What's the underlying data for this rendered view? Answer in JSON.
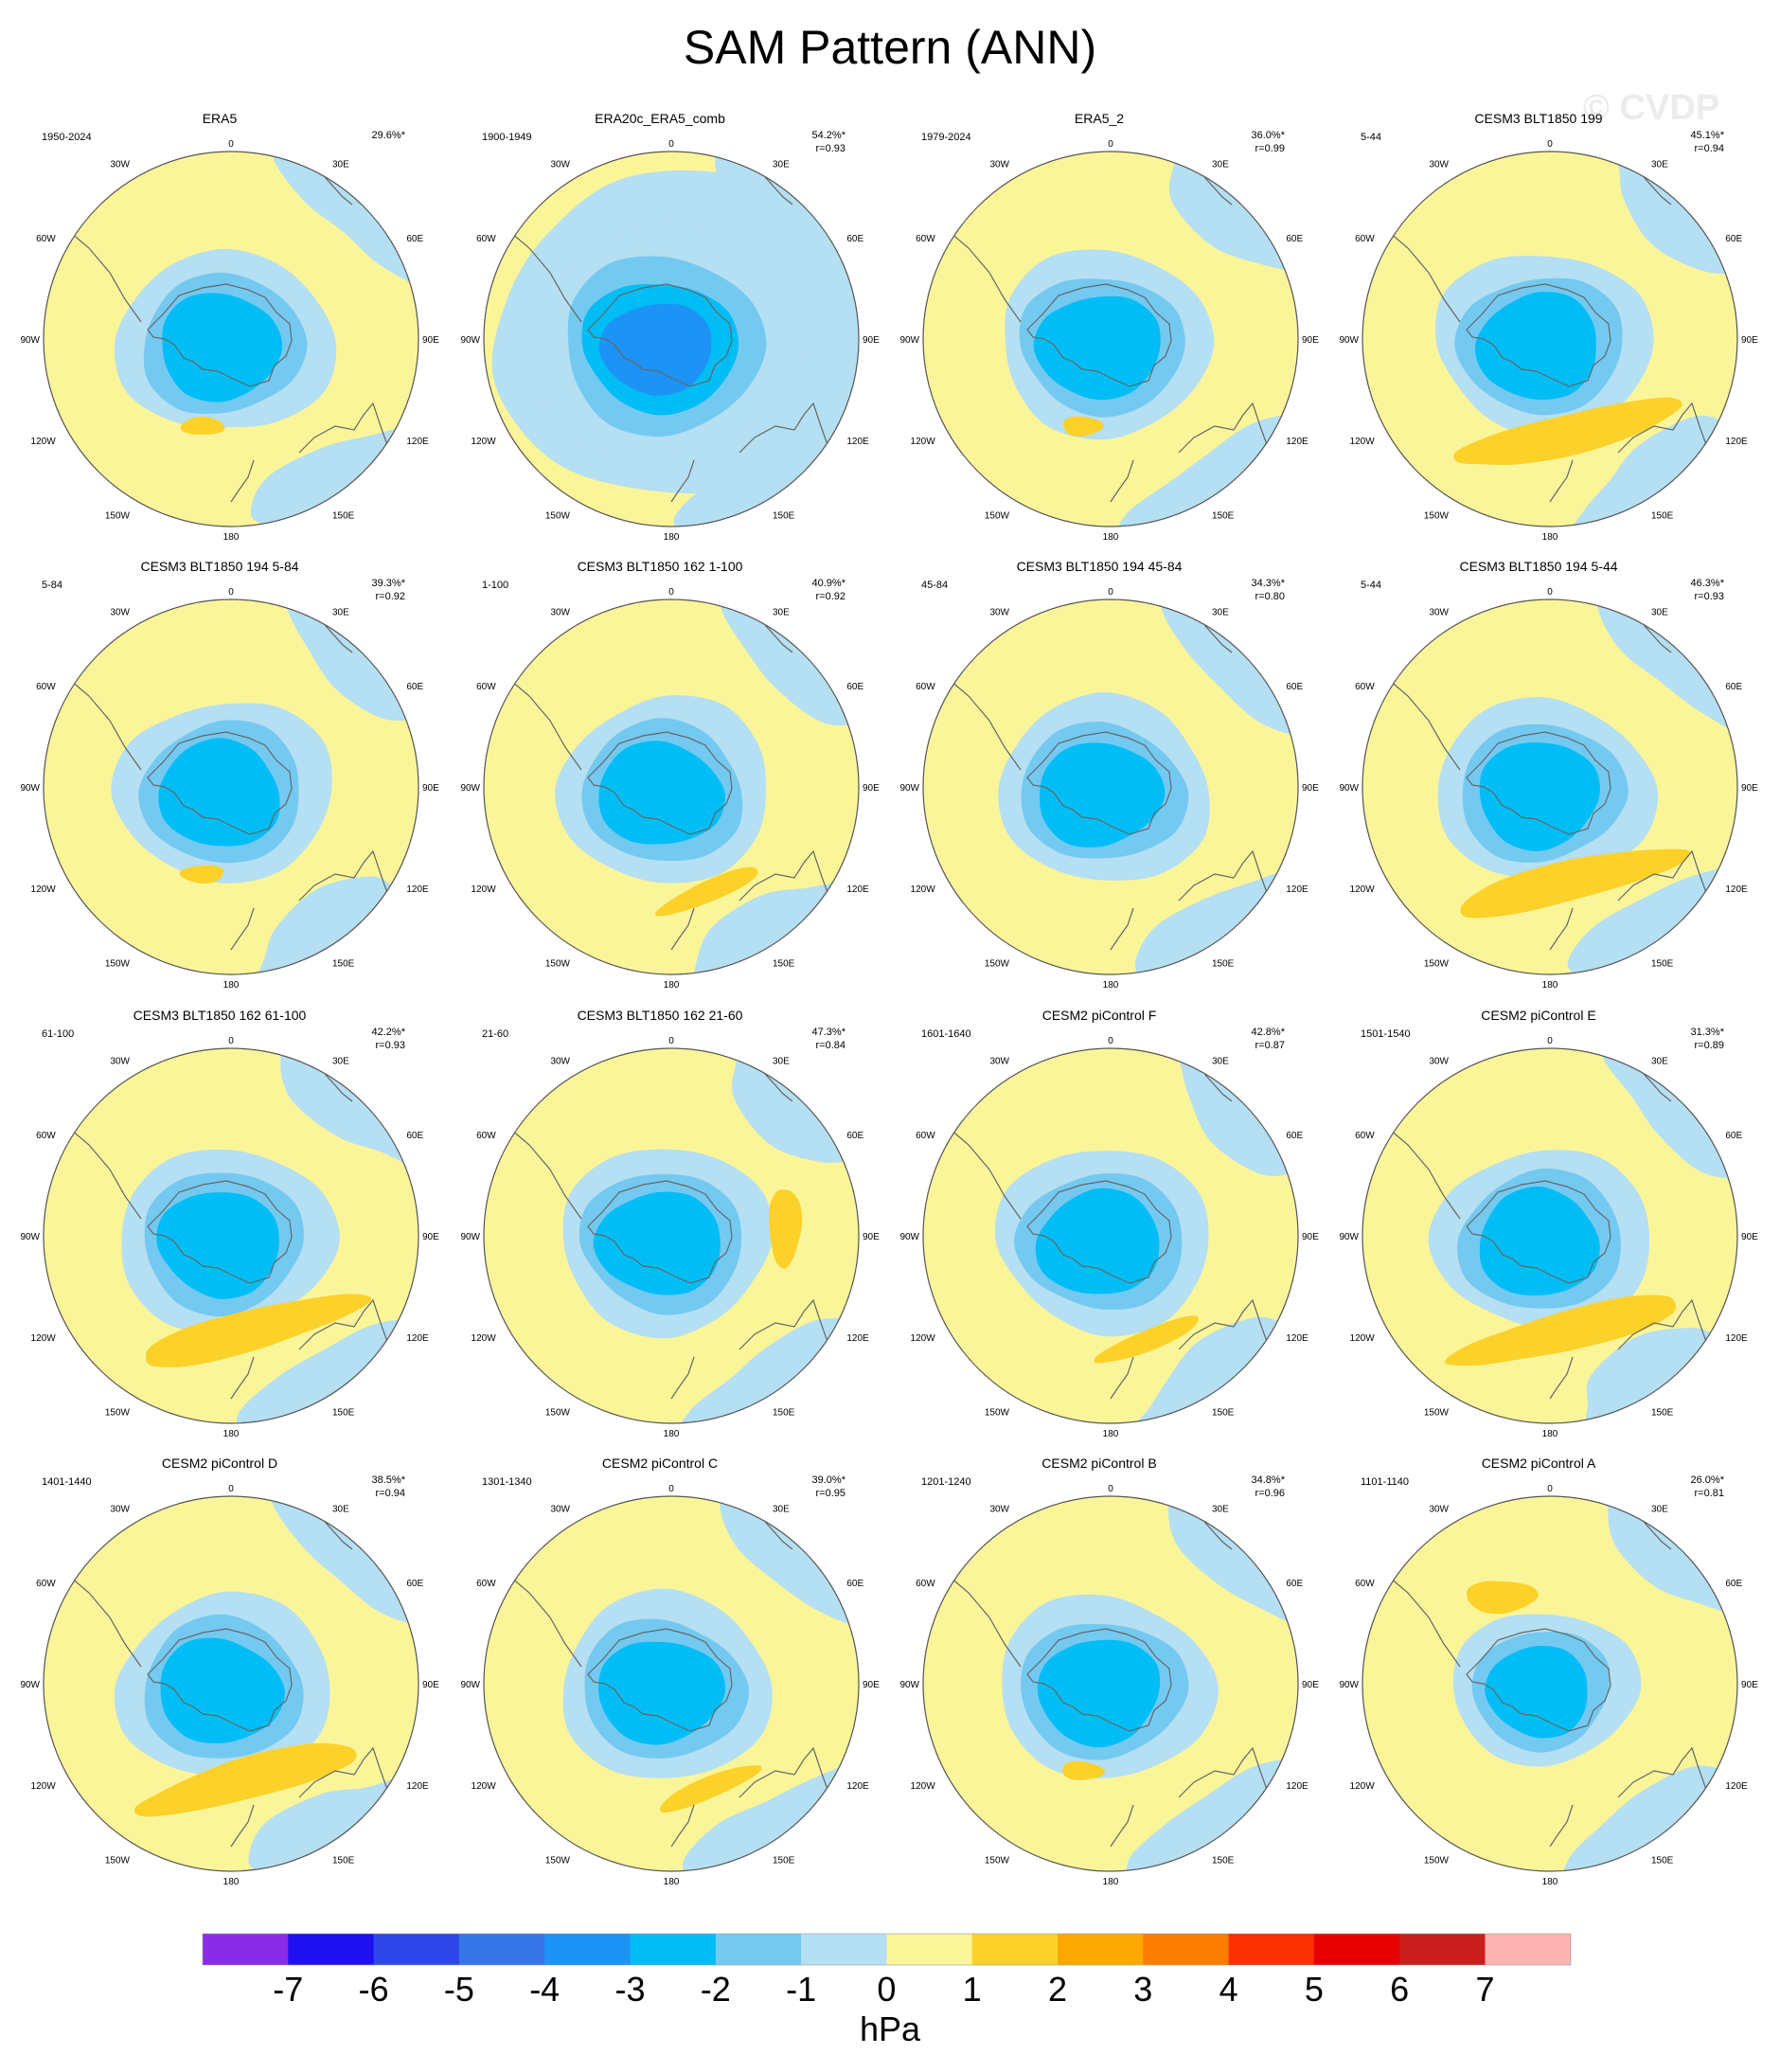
{
  "figure": {
    "title": "SAM Pattern (ANN)",
    "watermark": "© CVDP"
  },
  "chart_data": {
    "type": "heatmap",
    "projection": "south-polar-stereographic",
    "colors": {
      "ocean_neutral": "#fbf59a",
      "land_outline": "#666666",
      "boundary": "#555555",
      "levels": {
        "-7": "#8a2be8",
        "-6": "#1e10f0",
        "-5": "#2d47e8",
        "-4": "#3675e8",
        "-3": "#1d93f5",
        "-2": "#00bdf5",
        "-1": "#74c9f1",
        "0": "#b5dff2",
        "1": "#fbf59a",
        "2": "#fcd129",
        "3": "#fca800",
        "4": "#fc7e00",
        "5": "#fc2f00",
        "6": "#e80000",
        "7": "#c81e1e",
        "8": "#ffb4b4"
      }
    },
    "longitude_labels": [
      "0",
      "30E",
      "60E",
      "90E",
      "120E",
      "150E",
      "180",
      "150W",
      "120W",
      "90W",
      "60W",
      "30W"
    ],
    "panels": [
      {
        "title": "ERA5",
        "period": "1950-2024",
        "pct": "29.6%*",
        "r": "",
        "min_level": -2,
        "max_pos": 2,
        "pos_zone": "pacific-small",
        "neg_extent": "medium"
      },
      {
        "title": "ERA20c_ERA5_comb",
        "period": "1900-1949",
        "pct": "54.2%*",
        "r": "r=0.93",
        "min_level": -3,
        "max_pos": 1,
        "pos_zone": "none",
        "neg_extent": "large"
      },
      {
        "title": "ERA5_2",
        "period": "1979-2024",
        "pct": "36.0%*",
        "r": "r=0.99",
        "min_level": -2,
        "max_pos": 2,
        "pos_zone": "pacific-small",
        "neg_extent": "medium"
      },
      {
        "title": "CESM3 BLT1850 199",
        "period": "5-44",
        "pct": "45.1%*",
        "r": "r=0.94",
        "min_level": -2,
        "max_pos": 2,
        "pos_zone": "pacific-arc",
        "neg_extent": "medium"
      },
      {
        "title": "CESM3 BLT1850 194 5-84",
        "period": "5-84",
        "pct": "39.3%*",
        "r": "r=0.92",
        "min_level": -2,
        "max_pos": 2,
        "pos_zone": "pacific-small",
        "neg_extent": "medium"
      },
      {
        "title": "CESM3 BLT1850 162 1-100",
        "period": "1-100",
        "pct": "40.9%*",
        "r": "r=0.92",
        "min_level": -2,
        "max_pos": 2,
        "pos_zone": "pacific-streak",
        "neg_extent": "medium"
      },
      {
        "title": "CESM3 BLT1850 194 45-84",
        "period": "45-84",
        "pct": "34.3%*",
        "r": "r=0.80",
        "min_level": -2,
        "max_pos": 1,
        "pos_zone": "none",
        "neg_extent": "medium"
      },
      {
        "title": "CESM3 BLT1850 194 5-44",
        "period": "5-44",
        "pct": "46.3%*",
        "r": "r=0.93",
        "min_level": -2,
        "max_pos": 2,
        "pos_zone": "pacific-arc",
        "neg_extent": "medium"
      },
      {
        "title": "CESM3 BLT1850 162 61-100",
        "period": "61-100",
        "pct": "42.2%*",
        "r": "r=0.93",
        "min_level": -2,
        "max_pos": 2,
        "pos_zone": "pacific-arc",
        "neg_extent": "medium"
      },
      {
        "title": "CESM3 BLT1850 162 21-60",
        "period": "21-60",
        "pct": "47.3%*",
        "r": "r=0.84",
        "min_level": -2,
        "max_pos": 2,
        "pos_zone": "indian-blob",
        "neg_extent": "medium"
      },
      {
        "title": "CESM2 piControl F",
        "period": "1601-1640",
        "pct": "42.8%*",
        "r": "r=0.87",
        "min_level": -2,
        "max_pos": 2,
        "pos_zone": "pacific-streak",
        "neg_extent": "medium"
      },
      {
        "title": "CESM2 piControl E",
        "period": "1501-1540",
        "pct": "31.3%*",
        "r": "r=0.89",
        "min_level": -2,
        "max_pos": 2,
        "pos_zone": "pacific-arc",
        "neg_extent": "medium"
      },
      {
        "title": "CESM2 piControl D",
        "period": "1401-1440",
        "pct": "38.5%*",
        "r": "r=0.94",
        "min_level": -2,
        "max_pos": 2,
        "pos_zone": "pacific-arc",
        "neg_extent": "medium"
      },
      {
        "title": "CESM2 piControl C",
        "period": "1301-1340",
        "pct": "39.0%*",
        "r": "r=0.95",
        "min_level": -2,
        "max_pos": 2,
        "pos_zone": "pacific-streak",
        "neg_extent": "medium"
      },
      {
        "title": "CESM2 piControl B",
        "period": "1201-1240",
        "pct": "34.8%*",
        "r": "r=0.96",
        "min_level": -2,
        "max_pos": 2,
        "pos_zone": "pacific-small",
        "neg_extent": "medium"
      },
      {
        "title": "CESM2 piControl A",
        "period": "1101-1140",
        "pct": "26.0%*",
        "r": "r=0.81",
        "min_level": -2,
        "max_pos": 2,
        "pos_zone": "atlantic-small",
        "neg_extent": "small"
      }
    ],
    "colorbar": {
      "ticks": [
        "-7",
        "-6",
        "-5",
        "-4",
        "-3",
        "-2",
        "-1",
        "0",
        "1",
        "2",
        "3",
        "4",
        "5",
        "6",
        "7"
      ],
      "label": "hPa"
    }
  }
}
